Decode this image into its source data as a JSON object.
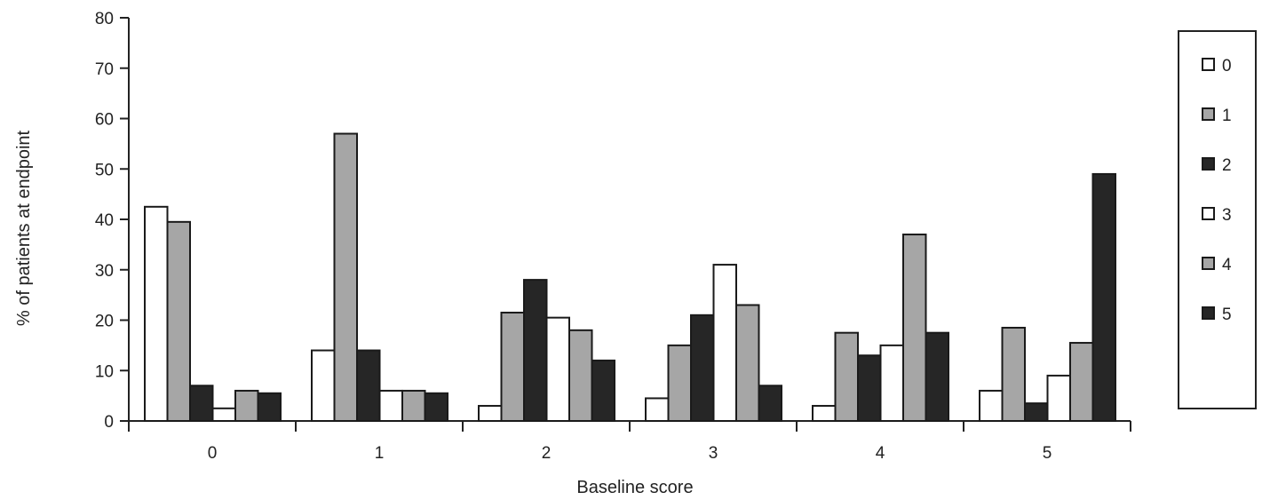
{
  "chart_data": {
    "type": "bar",
    "xlabel": "Baseline score",
    "ylabel": "% of patients at endpoint",
    "ylim": [
      0,
      80
    ],
    "yticks": [
      "0",
      "10",
      "20",
      "30",
      "40",
      "50",
      "60",
      "70",
      "80"
    ],
    "categories": [
      "0",
      "1",
      "2",
      "3",
      "4",
      "5"
    ],
    "legend_position": "right",
    "grid": false,
    "series": [
      {
        "name": "0",
        "color": "#ffffff",
        "values": [
          42.5,
          14,
          3,
          4.5,
          3,
          6
        ]
      },
      {
        "name": "1",
        "color": "#a6a6a6",
        "values": [
          39.5,
          57,
          21.5,
          15,
          17.5,
          18.5
        ]
      },
      {
        "name": "2",
        "color": "#262626",
        "values": [
          7,
          14,
          28,
          21,
          13,
          3.5
        ]
      },
      {
        "name": "3",
        "color": "#ffffff",
        "values": [
          2.5,
          6,
          20.5,
          31,
          15,
          9
        ]
      },
      {
        "name": "4",
        "color": "#a6a6a6",
        "values": [
          6,
          6,
          18,
          23,
          37,
          15.5
        ]
      },
      {
        "name": "5",
        "color": "#262626",
        "values": [
          5.5,
          5.5,
          12,
          7,
          17.5,
          49
        ]
      }
    ]
  }
}
